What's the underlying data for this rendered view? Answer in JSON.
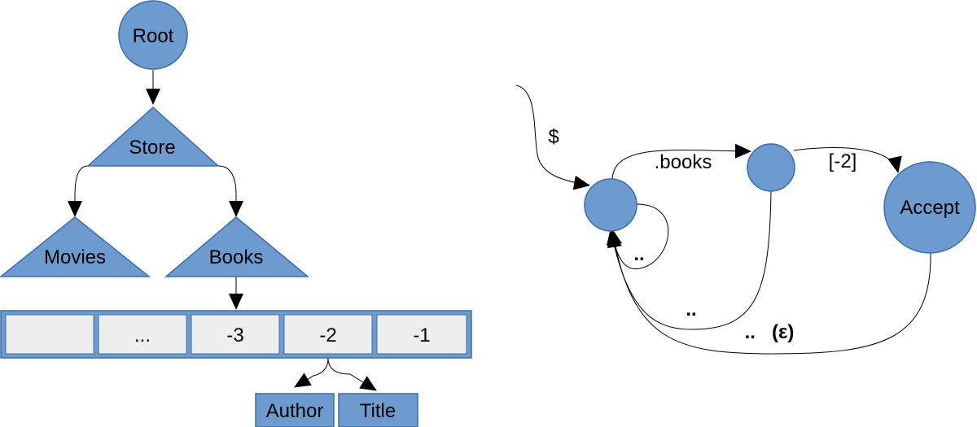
{
  "tree": {
    "root_label": "Root",
    "store_label": "Store",
    "movies_label": "Movies",
    "books_label": "Books",
    "array_cells": [
      "",
      "...",
      "-3",
      "-2",
      "-1"
    ],
    "author_label": "Author",
    "title_label": "Title"
  },
  "automaton": {
    "start_label": "$",
    "books_edge_label": ".books",
    "index_edge_label": "[-2]",
    "accept_label": "Accept",
    "self_loop_label": "..",
    "back_edge_label": "..",
    "epsilon_edge_label": "..   (ε)"
  },
  "colors": {
    "node_fill": "#6d9bcf",
    "node_stroke": "#3a6ea8",
    "cell_fill": "#eeeeee",
    "array_fill": "#6d9bcf"
  }
}
